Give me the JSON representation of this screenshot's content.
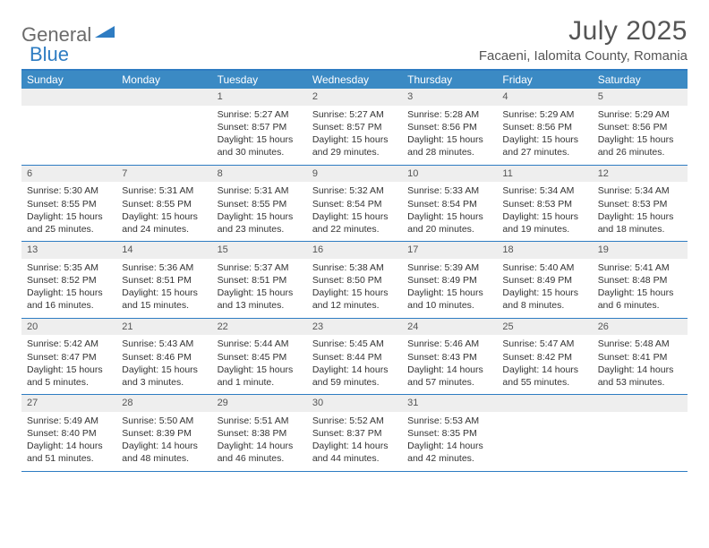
{
  "brand": {
    "part1": "General",
    "part2": "Blue"
  },
  "title": "July 2025",
  "location": "Facaeni, Ialomita County, Romania",
  "colors": {
    "header_bg": "#3b8ac4",
    "border": "#2e7cc2",
    "daynum_bg": "#eeeeee",
    "text": "#333333",
    "title_text": "#555555",
    "logo_gray": "#6b6b6b",
    "logo_blue": "#2e7cc2"
  },
  "day_names": [
    "Sunday",
    "Monday",
    "Tuesday",
    "Wednesday",
    "Thursday",
    "Friday",
    "Saturday"
  ],
  "weeks": [
    [
      {
        "n": "",
        "sunrise": "",
        "sunset": "",
        "daylight": ""
      },
      {
        "n": "",
        "sunrise": "",
        "sunset": "",
        "daylight": ""
      },
      {
        "n": "1",
        "sunrise": "Sunrise: 5:27 AM",
        "sunset": "Sunset: 8:57 PM",
        "daylight": "Daylight: 15 hours and 30 minutes."
      },
      {
        "n": "2",
        "sunrise": "Sunrise: 5:27 AM",
        "sunset": "Sunset: 8:57 PM",
        "daylight": "Daylight: 15 hours and 29 minutes."
      },
      {
        "n": "3",
        "sunrise": "Sunrise: 5:28 AM",
        "sunset": "Sunset: 8:56 PM",
        "daylight": "Daylight: 15 hours and 28 minutes."
      },
      {
        "n": "4",
        "sunrise": "Sunrise: 5:29 AM",
        "sunset": "Sunset: 8:56 PM",
        "daylight": "Daylight: 15 hours and 27 minutes."
      },
      {
        "n": "5",
        "sunrise": "Sunrise: 5:29 AM",
        "sunset": "Sunset: 8:56 PM",
        "daylight": "Daylight: 15 hours and 26 minutes."
      }
    ],
    [
      {
        "n": "6",
        "sunrise": "Sunrise: 5:30 AM",
        "sunset": "Sunset: 8:55 PM",
        "daylight": "Daylight: 15 hours and 25 minutes."
      },
      {
        "n": "7",
        "sunrise": "Sunrise: 5:31 AM",
        "sunset": "Sunset: 8:55 PM",
        "daylight": "Daylight: 15 hours and 24 minutes."
      },
      {
        "n": "8",
        "sunrise": "Sunrise: 5:31 AM",
        "sunset": "Sunset: 8:55 PM",
        "daylight": "Daylight: 15 hours and 23 minutes."
      },
      {
        "n": "9",
        "sunrise": "Sunrise: 5:32 AM",
        "sunset": "Sunset: 8:54 PM",
        "daylight": "Daylight: 15 hours and 22 minutes."
      },
      {
        "n": "10",
        "sunrise": "Sunrise: 5:33 AM",
        "sunset": "Sunset: 8:54 PM",
        "daylight": "Daylight: 15 hours and 20 minutes."
      },
      {
        "n": "11",
        "sunrise": "Sunrise: 5:34 AM",
        "sunset": "Sunset: 8:53 PM",
        "daylight": "Daylight: 15 hours and 19 minutes."
      },
      {
        "n": "12",
        "sunrise": "Sunrise: 5:34 AM",
        "sunset": "Sunset: 8:53 PM",
        "daylight": "Daylight: 15 hours and 18 minutes."
      }
    ],
    [
      {
        "n": "13",
        "sunrise": "Sunrise: 5:35 AM",
        "sunset": "Sunset: 8:52 PM",
        "daylight": "Daylight: 15 hours and 16 minutes."
      },
      {
        "n": "14",
        "sunrise": "Sunrise: 5:36 AM",
        "sunset": "Sunset: 8:51 PM",
        "daylight": "Daylight: 15 hours and 15 minutes."
      },
      {
        "n": "15",
        "sunrise": "Sunrise: 5:37 AM",
        "sunset": "Sunset: 8:51 PM",
        "daylight": "Daylight: 15 hours and 13 minutes."
      },
      {
        "n": "16",
        "sunrise": "Sunrise: 5:38 AM",
        "sunset": "Sunset: 8:50 PM",
        "daylight": "Daylight: 15 hours and 12 minutes."
      },
      {
        "n": "17",
        "sunrise": "Sunrise: 5:39 AM",
        "sunset": "Sunset: 8:49 PM",
        "daylight": "Daylight: 15 hours and 10 minutes."
      },
      {
        "n": "18",
        "sunrise": "Sunrise: 5:40 AM",
        "sunset": "Sunset: 8:49 PM",
        "daylight": "Daylight: 15 hours and 8 minutes."
      },
      {
        "n": "19",
        "sunrise": "Sunrise: 5:41 AM",
        "sunset": "Sunset: 8:48 PM",
        "daylight": "Daylight: 15 hours and 6 minutes."
      }
    ],
    [
      {
        "n": "20",
        "sunrise": "Sunrise: 5:42 AM",
        "sunset": "Sunset: 8:47 PM",
        "daylight": "Daylight: 15 hours and 5 minutes."
      },
      {
        "n": "21",
        "sunrise": "Sunrise: 5:43 AM",
        "sunset": "Sunset: 8:46 PM",
        "daylight": "Daylight: 15 hours and 3 minutes."
      },
      {
        "n": "22",
        "sunrise": "Sunrise: 5:44 AM",
        "sunset": "Sunset: 8:45 PM",
        "daylight": "Daylight: 15 hours and 1 minute."
      },
      {
        "n": "23",
        "sunrise": "Sunrise: 5:45 AM",
        "sunset": "Sunset: 8:44 PM",
        "daylight": "Daylight: 14 hours and 59 minutes."
      },
      {
        "n": "24",
        "sunrise": "Sunrise: 5:46 AM",
        "sunset": "Sunset: 8:43 PM",
        "daylight": "Daylight: 14 hours and 57 minutes."
      },
      {
        "n": "25",
        "sunrise": "Sunrise: 5:47 AM",
        "sunset": "Sunset: 8:42 PM",
        "daylight": "Daylight: 14 hours and 55 minutes."
      },
      {
        "n": "26",
        "sunrise": "Sunrise: 5:48 AM",
        "sunset": "Sunset: 8:41 PM",
        "daylight": "Daylight: 14 hours and 53 minutes."
      }
    ],
    [
      {
        "n": "27",
        "sunrise": "Sunrise: 5:49 AM",
        "sunset": "Sunset: 8:40 PM",
        "daylight": "Daylight: 14 hours and 51 minutes."
      },
      {
        "n": "28",
        "sunrise": "Sunrise: 5:50 AM",
        "sunset": "Sunset: 8:39 PM",
        "daylight": "Daylight: 14 hours and 48 minutes."
      },
      {
        "n": "29",
        "sunrise": "Sunrise: 5:51 AM",
        "sunset": "Sunset: 8:38 PM",
        "daylight": "Daylight: 14 hours and 46 minutes."
      },
      {
        "n": "30",
        "sunrise": "Sunrise: 5:52 AM",
        "sunset": "Sunset: 8:37 PM",
        "daylight": "Daylight: 14 hours and 44 minutes."
      },
      {
        "n": "31",
        "sunrise": "Sunrise: 5:53 AM",
        "sunset": "Sunset: 8:35 PM",
        "daylight": "Daylight: 14 hours and 42 minutes."
      },
      {
        "n": "",
        "sunrise": "",
        "sunset": "",
        "daylight": ""
      },
      {
        "n": "",
        "sunrise": "",
        "sunset": "",
        "daylight": ""
      }
    ]
  ]
}
